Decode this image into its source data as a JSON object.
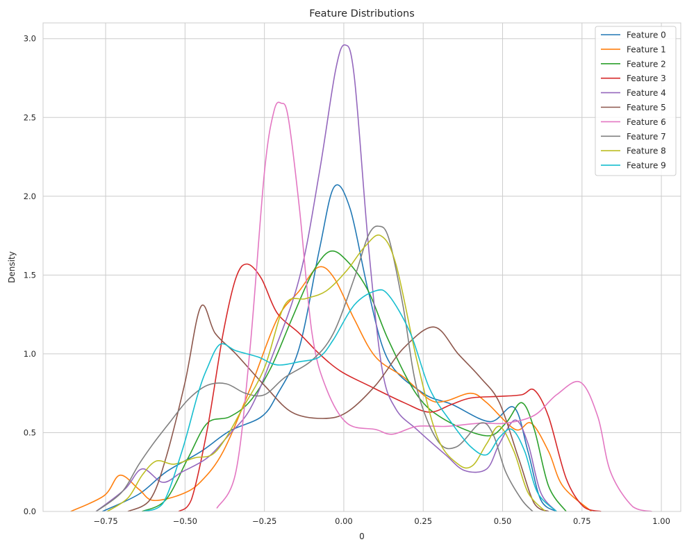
{
  "chart_data": {
    "type": "line",
    "title": "Feature Distributions",
    "xlabel": "0",
    "ylabel": "Density",
    "xlim": [
      -0.947,
      1.061
    ],
    "ylim": [
      0,
      3.1
    ],
    "xticks": [
      -0.75,
      -0.5,
      -0.25,
      0,
      0.25,
      0.5,
      0.75,
      1.0
    ],
    "xtick_labels": [
      "−0.75",
      "−0.50",
      "−0.25",
      "0.00",
      "0.25",
      "0.50",
      "0.75",
      "1.00"
    ],
    "yticks": [
      0,
      0.5,
      1.0,
      1.5,
      2.0,
      2.5,
      3.0
    ],
    "ytick_labels": [
      "0.0",
      "0.5",
      "1.0",
      "1.5",
      "2.0",
      "2.5",
      "3.0"
    ],
    "grid": true,
    "legend_position": "top-right",
    "series": [
      {
        "name": "Feature 0",
        "color": "#1f77b4",
        "points": [
          [
            -0.76,
            0
          ],
          [
            -0.645,
            0.11
          ],
          [
            -0.56,
            0.25
          ],
          [
            -0.45,
            0.38
          ],
          [
            -0.36,
            0.51
          ],
          [
            -0.26,
            0.6
          ],
          [
            -0.21,
            0.74
          ],
          [
            -0.14,
            1.04
          ],
          [
            -0.077,
            1.66
          ],
          [
            -0.03,
            2.06
          ],
          [
            0.02,
            1.92
          ],
          [
            0.077,
            1.4
          ],
          [
            0.14,
            0.96
          ],
          [
            0.25,
            0.75
          ],
          [
            0.34,
            0.68
          ],
          [
            0.46,
            0.57
          ],
          [
            0.536,
            0.66
          ],
          [
            0.58,
            0.38
          ],
          [
            0.62,
            0.075
          ],
          [
            0.67,
            0
          ]
        ]
      },
      {
        "name": "Feature 1",
        "color": "#ff7f0e",
        "points": [
          [
            -0.86,
            0
          ],
          [
            -0.755,
            0.1
          ],
          [
            -0.705,
            0.23
          ],
          [
            -0.645,
            0.14
          ],
          [
            -0.6,
            0.07
          ],
          [
            -0.51,
            0.11
          ],
          [
            -0.45,
            0.19
          ],
          [
            -0.38,
            0.38
          ],
          [
            -0.295,
            0.78
          ],
          [
            -0.21,
            1.22
          ],
          [
            -0.14,
            1.4
          ],
          [
            -0.08,
            1.55
          ],
          [
            -0.03,
            1.48
          ],
          [
            0.033,
            1.22
          ],
          [
            0.1,
            0.98
          ],
          [
            0.19,
            0.85
          ],
          [
            0.27,
            0.71
          ],
          [
            0.32,
            0.7
          ],
          [
            0.4,
            0.75
          ],
          [
            0.45,
            0.69
          ],
          [
            0.54,
            0.52
          ],
          [
            0.59,
            0.56
          ],
          [
            0.645,
            0.38
          ],
          [
            0.69,
            0.16
          ],
          [
            0.78,
            0
          ]
        ]
      },
      {
        "name": "Feature 2",
        "color": "#2ca02c",
        "points": [
          [
            -0.635,
            0
          ],
          [
            -0.56,
            0.075
          ],
          [
            -0.49,
            0.34
          ],
          [
            -0.43,
            0.56
          ],
          [
            -0.36,
            0.6
          ],
          [
            -0.295,
            0.7
          ],
          [
            -0.23,
            0.91
          ],
          [
            -0.164,
            1.22
          ],
          [
            -0.1,
            1.51
          ],
          [
            -0.044,
            1.65
          ],
          [
            0.01,
            1.59
          ],
          [
            0.077,
            1.4
          ],
          [
            0.14,
            1.09
          ],
          [
            0.23,
            0.74
          ],
          [
            0.32,
            0.58
          ],
          [
            0.45,
            0.48
          ],
          [
            0.51,
            0.56
          ],
          [
            0.56,
            0.69
          ],
          [
            0.6,
            0.52
          ],
          [
            0.645,
            0.16
          ],
          [
            0.7,
            0
          ]
        ]
      },
      {
        "name": "Feature 3",
        "color": "#d62728",
        "points": [
          [
            -0.52,
            0
          ],
          [
            -0.48,
            0.075
          ],
          [
            -0.43,
            0.52
          ],
          [
            -0.38,
            1.13
          ],
          [
            -0.34,
            1.48
          ],
          [
            -0.305,
            1.57
          ],
          [
            -0.26,
            1.48
          ],
          [
            -0.21,
            1.26
          ],
          [
            -0.14,
            1.13
          ],
          [
            -0.077,
            1.0
          ],
          [
            -0.01,
            0.89
          ],
          [
            0.077,
            0.8
          ],
          [
            0.19,
            0.69
          ],
          [
            0.27,
            0.63
          ],
          [
            0.34,
            0.68
          ],
          [
            0.4,
            0.72
          ],
          [
            0.49,
            0.73
          ],
          [
            0.56,
            0.74
          ],
          [
            0.6,
            0.77
          ],
          [
            0.645,
            0.6
          ],
          [
            0.7,
            0.21
          ],
          [
            0.755,
            0.03
          ],
          [
            0.81,
            0
          ]
        ]
      },
      {
        "name": "Feature 4",
        "color": "#9467bd",
        "points": [
          [
            -0.78,
            0
          ],
          [
            -0.69,
            0.14
          ],
          [
            -0.635,
            0.27
          ],
          [
            -0.57,
            0.185
          ],
          [
            -0.51,
            0.25
          ],
          [
            -0.43,
            0.34
          ],
          [
            -0.36,
            0.49
          ],
          [
            -0.295,
            0.65
          ],
          [
            -0.23,
            0.96
          ],
          [
            -0.14,
            1.48
          ],
          [
            -0.077,
            2.15
          ],
          [
            -0.026,
            2.8
          ],
          [
            0.004,
            2.96
          ],
          [
            0.033,
            2.76
          ],
          [
            0.077,
            1.7
          ],
          [
            0.12,
            0.91
          ],
          [
            0.164,
            0.65
          ],
          [
            0.23,
            0.52
          ],
          [
            0.32,
            0.36
          ],
          [
            0.38,
            0.26
          ],
          [
            0.45,
            0.27
          ],
          [
            0.49,
            0.43
          ],
          [
            0.54,
            0.58
          ],
          [
            0.58,
            0.43
          ],
          [
            0.62,
            0.12
          ],
          [
            0.67,
            0
          ]
        ]
      },
      {
        "name": "Feature 5",
        "color": "#8c564b",
        "points": [
          [
            -0.68,
            0
          ],
          [
            -0.61,
            0.075
          ],
          [
            -0.56,
            0.34
          ],
          [
            -0.5,
            0.82
          ],
          [
            -0.45,
            1.3
          ],
          [
            -0.405,
            1.13
          ],
          [
            -0.34,
            1.0
          ],
          [
            -0.25,
            0.8
          ],
          [
            -0.164,
            0.63
          ],
          [
            -0.066,
            0.59
          ],
          [
            0.01,
            0.63
          ],
          [
            0.1,
            0.8
          ],
          [
            0.19,
            1.04
          ],
          [
            0.285,
            1.17
          ],
          [
            0.36,
            1.0
          ],
          [
            0.43,
            0.85
          ],
          [
            0.49,
            0.69
          ],
          [
            0.55,
            0.34
          ],
          [
            0.6,
            0.05
          ],
          [
            0.645,
            0
          ]
        ]
      },
      {
        "name": "Feature 6",
        "color": "#e377c2",
        "points": [
          [
            -0.4,
            0.02
          ],
          [
            -0.34,
            0.25
          ],
          [
            -0.295,
            1.04
          ],
          [
            -0.25,
            2.15
          ],
          [
            -0.22,
            2.54
          ],
          [
            -0.197,
            2.59
          ],
          [
            -0.175,
            2.5
          ],
          [
            -0.14,
            1.93
          ],
          [
            -0.1,
            1.13
          ],
          [
            -0.055,
            0.78
          ],
          [
            0.01,
            0.56
          ],
          [
            0.1,
            0.52
          ],
          [
            0.153,
            0.49
          ],
          [
            0.23,
            0.54
          ],
          [
            0.32,
            0.54
          ],
          [
            0.43,
            0.56
          ],
          [
            0.51,
            0.56
          ],
          [
            0.6,
            0.61
          ],
          [
            0.67,
            0.74
          ],
          [
            0.745,
            0.82
          ],
          [
            0.8,
            0.6
          ],
          [
            0.84,
            0.25
          ],
          [
            0.91,
            0.03
          ],
          [
            0.97,
            0
          ]
        ]
      },
      {
        "name": "Feature 7",
        "color": "#7f7f7f",
        "points": [
          [
            -0.78,
            0
          ],
          [
            -0.7,
            0.12
          ],
          [
            -0.645,
            0.3
          ],
          [
            -0.6,
            0.43
          ],
          [
            -0.55,
            0.56
          ],
          [
            -0.49,
            0.71
          ],
          [
            -0.43,
            0.8
          ],
          [
            -0.37,
            0.81
          ],
          [
            -0.31,
            0.75
          ],
          [
            -0.25,
            0.74
          ],
          [
            -0.186,
            0.85
          ],
          [
            -0.1,
            0.96
          ],
          [
            -0.033,
            1.13
          ],
          [
            0.033,
            1.48
          ],
          [
            0.077,
            1.75
          ],
          [
            0.11,
            1.81
          ],
          [
            0.142,
            1.73
          ],
          [
            0.186,
            1.31
          ],
          [
            0.23,
            0.78
          ],
          [
            0.295,
            0.45
          ],
          [
            0.355,
            0.41
          ],
          [
            0.43,
            0.56
          ],
          [
            0.47,
            0.49
          ],
          [
            0.51,
            0.25
          ],
          [
            0.56,
            0.075
          ],
          [
            0.595,
            0
          ]
        ]
      },
      {
        "name": "Feature 8",
        "color": "#bcbd22",
        "points": [
          [
            -0.745,
            0
          ],
          [
            -0.68,
            0.085
          ],
          [
            -0.635,
            0.23
          ],
          [
            -0.59,
            0.32
          ],
          [
            -0.535,
            0.3
          ],
          [
            -0.47,
            0.34
          ],
          [
            -0.415,
            0.36
          ],
          [
            -0.37,
            0.47
          ],
          [
            -0.32,
            0.65
          ],
          [
            -0.25,
            0.91
          ],
          [
            -0.186,
            1.31
          ],
          [
            -0.12,
            1.35
          ],
          [
            -0.055,
            1.4
          ],
          [
            0.01,
            1.53
          ],
          [
            0.066,
            1.68
          ],
          [
            0.116,
            1.75
          ],
          [
            0.164,
            1.57
          ],
          [
            0.23,
            0.96
          ],
          [
            0.295,
            0.47
          ],
          [
            0.36,
            0.3
          ],
          [
            0.405,
            0.29
          ],
          [
            0.45,
            0.43
          ],
          [
            0.49,
            0.54
          ],
          [
            0.536,
            0.38
          ],
          [
            0.58,
            0.12
          ],
          [
            0.635,
            0
          ]
        ]
      },
      {
        "name": "Feature 9",
        "color": "#17becf",
        "points": [
          [
            -0.63,
            0
          ],
          [
            -0.57,
            0.05
          ],
          [
            -0.51,
            0.38
          ],
          [
            -0.46,
            0.74
          ],
          [
            -0.43,
            0.91
          ],
          [
            -0.39,
            1.06
          ],
          [
            -0.34,
            1.02
          ],
          [
            -0.27,
            0.98
          ],
          [
            -0.21,
            0.93
          ],
          [
            -0.14,
            0.95
          ],
          [
            -0.077,
            0.98
          ],
          [
            -0.033,
            1.09
          ],
          [
            0.033,
            1.31
          ],
          [
            0.1,
            1.4
          ],
          [
            0.142,
            1.37
          ],
          [
            0.21,
            1.13
          ],
          [
            0.27,
            0.78
          ],
          [
            0.34,
            0.56
          ],
          [
            0.4,
            0.41
          ],
          [
            0.45,
            0.36
          ],
          [
            0.49,
            0.47
          ],
          [
            0.53,
            0.52
          ],
          [
            0.57,
            0.38
          ],
          [
            0.61,
            0.12
          ],
          [
            0.67,
            0
          ]
        ]
      }
    ]
  }
}
